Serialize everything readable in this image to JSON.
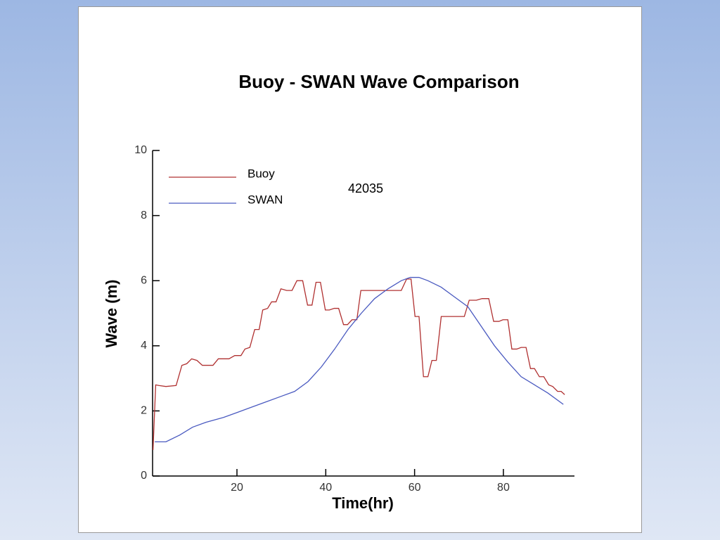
{
  "chart_data": {
    "type": "line",
    "title": "Buoy - SWAN Wave Comparison",
    "annotation": "42035",
    "x_label": "Time(hr)",
    "y_label": "Wave (m)",
    "xlim": [
      1,
      96
    ],
    "xticks": [
      20,
      40,
      60,
      80
    ],
    "ylim": [
      0,
      10
    ],
    "yticks": [
      0,
      2,
      4,
      6,
      8,
      10
    ],
    "legend": "upper left",
    "series": [
      {
        "name": "Buoy",
        "color": "#b03030",
        "x": [
          1.1,
          1.7,
          2.4,
          4,
          6.3,
          7.6,
          8.7,
          9.8,
          11,
          12.2,
          14.6,
          15.8,
          18.2,
          19.5,
          20.9,
          21.8,
          22.9,
          24,
          25,
          25.8,
          26.9,
          27.8,
          28.8,
          29.9,
          31.2,
          32.4,
          33.5,
          34.8,
          35.9,
          36.9,
          37.8,
          38.8,
          39.9,
          40.8,
          41.9,
          42.9,
          44,
          44.9,
          45.9,
          47,
          47.9,
          57,
          58.2,
          59.2,
          60.1,
          61,
          62,
          63,
          63.9,
          64.9,
          66,
          71.2,
          72.3,
          73.9,
          75.2,
          76.7,
          77.8,
          79,
          79.9,
          81,
          81.9,
          83,
          84,
          85.1,
          86.1,
          87,
          88.1,
          89.1,
          90.2,
          91.1,
          92.2,
          93,
          93.8
        ],
        "values": [
          0.8,
          2.8,
          2.78,
          2.75,
          2.78,
          3.4,
          3.45,
          3.6,
          3.55,
          3.4,
          3.4,
          3.6,
          3.6,
          3.7,
          3.7,
          3.9,
          3.95,
          4.5,
          4.5,
          5.1,
          5.15,
          5.35,
          5.35,
          5.75,
          5.7,
          5.7,
          6.0,
          6.0,
          5.25,
          5.25,
          5.95,
          5.95,
          5.1,
          5.1,
          5.15,
          5.15,
          4.65,
          4.65,
          4.8,
          4.8,
          5.7,
          5.7,
          6.05,
          6.05,
          4.9,
          4.9,
          3.05,
          3.05,
          3.55,
          3.55,
          4.9,
          4.9,
          5.4,
          5.4,
          5.45,
          5.45,
          4.75,
          4.75,
          4.8,
          4.8,
          3.9,
          3.9,
          3.95,
          3.95,
          3.3,
          3.3,
          3.05,
          3.05,
          2.8,
          2.75,
          2.6,
          2.6,
          2.5
        ]
      },
      {
        "name": "SWAN",
        "color": "#4a5ac0",
        "x": [
          1.5,
          4,
          7,
          10,
          13,
          17,
          20,
          23,
          27,
          30,
          33,
          36,
          39,
          42,
          45,
          48,
          51,
          54,
          57,
          59,
          61,
          63,
          66,
          69,
          72,
          75,
          78,
          81,
          84,
          87,
          90,
          93.5
        ],
        "values": [
          1.05,
          1.05,
          1.25,
          1.5,
          1.65,
          1.8,
          1.95,
          2.1,
          2.3,
          2.45,
          2.6,
          2.9,
          3.35,
          3.9,
          4.5,
          5.0,
          5.45,
          5.75,
          6.0,
          6.1,
          6.1,
          6.0,
          5.8,
          5.5,
          5.2,
          4.6,
          4.0,
          3.5,
          3.05,
          2.8,
          2.55,
          2.2
        ]
      }
    ]
  }
}
